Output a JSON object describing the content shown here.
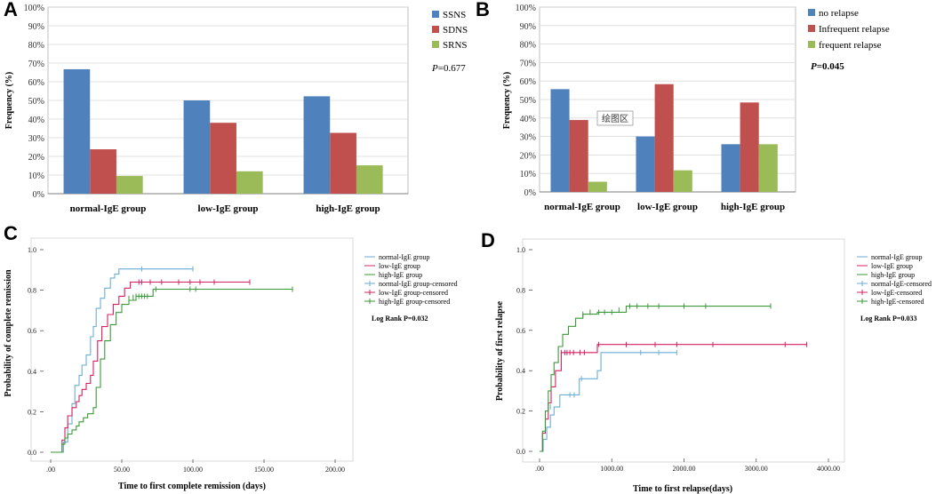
{
  "chart_data": [
    {
      "panel": "A",
      "type": "bar",
      "xlabel": "",
      "ylabel": "Frequency (%)",
      "yticks": [
        "0%",
        "10%",
        "20%",
        "30%",
        "40%",
        "50%",
        "60%",
        "70%",
        "80%",
        "90%",
        "100%"
      ],
      "ylim": [
        0,
        100
      ],
      "categories": [
        "normal-IgE group",
        "low-IgE group",
        "high-IgE group"
      ],
      "series": [
        {
          "name": "SSNS",
          "color": "#4f81bd",
          "values": [
            66.7,
            50.0,
            52.2
          ]
        },
        {
          "name": "SDNS",
          "color": "#c0504d",
          "values": [
            23.8,
            38.0,
            32.6
          ]
        },
        {
          "name": "SRNS",
          "color": "#9bbb59",
          "values": [
            9.5,
            12.0,
            15.2
          ]
        }
      ],
      "annotation_prefix": "P",
      "annotation_value": "=0.677"
    },
    {
      "panel": "B",
      "type": "bar",
      "xlabel": "",
      "ylabel": "Frequency (%)",
      "yticks": [
        "0%",
        "10%",
        "20%",
        "30%",
        "40%",
        "50%",
        "60%",
        "70%",
        "80%",
        "90%",
        "100%"
      ],
      "ylim": [
        0,
        100
      ],
      "categories": [
        "normal-IgE group",
        "low-IgE group",
        "high-IgE group"
      ],
      "series": [
        {
          "name": "no relapse",
          "color": "#4f81bd",
          "values": [
            55.6,
            30.0,
            25.8
          ]
        },
        {
          "name": "Infrequent relapse",
          "color": "#c0504d",
          "values": [
            38.9,
            58.3,
            48.4
          ]
        },
        {
          "name": "frequent relapse",
          "color": "#9bbb59",
          "values": [
            5.5,
            11.7,
            25.8
          ]
        }
      ],
      "annotation_prefix": "P",
      "annotation_value": "=0.045",
      "tooltip": "绘图区"
    },
    {
      "panel": "C",
      "type": "line",
      "xlabel": "Time to first complete remission (days)",
      "ylabel": "Probability of complete remission",
      "xlim": [
        0,
        200
      ],
      "ylim": [
        0,
        1
      ],
      "xticks": [
        0,
        50,
        100,
        150,
        200
      ],
      "xtick_labels": [
        ".00",
        "50.00",
        "100.00",
        "150.00",
        "200.00"
      ],
      "yticks": [
        0,
        0.2,
        0.4,
        0.6,
        0.8,
        1.0
      ],
      "ytick_labels": [
        "0.0",
        "0.2",
        "0.4",
        "0.6",
        "0.8",
        "1.0"
      ],
      "legend": [
        {
          "label": "normal-IgE group",
          "color": "#6baed6",
          "marker": false
        },
        {
          "label": "low-IgE group",
          "color": "#d62060",
          "marker": false
        },
        {
          "label": "high-IgE group",
          "color": "#3a9a3a",
          "marker": false
        },
        {
          "label": "normal-IgE group-censored",
          "color": "#6baed6",
          "marker": true
        },
        {
          "label": "low-IgE group-censored",
          "color": "#d62060",
          "marker": true
        },
        {
          "label": "high-IgE group-censored",
          "color": "#3a9a3a",
          "marker": true
        }
      ],
      "annotation": "Log Rank P=0.032",
      "series": [
        {
          "name": "normal-IgE group",
          "color": "#6baed6",
          "x": [
            0,
            9,
            12,
            15,
            17,
            20,
            22,
            25,
            28,
            30,
            32,
            35,
            38,
            42,
            45,
            48,
            100
          ],
          "y": [
            0,
            0.05,
            0.14,
            0.24,
            0.33,
            0.38,
            0.43,
            0.48,
            0.57,
            0.62,
            0.71,
            0.76,
            0.81,
            0.86,
            0.88,
            0.905,
            0.905
          ],
          "censored_x": [
            64,
            100
          ],
          "censored_y": [
            0.905,
            0.905
          ]
        },
        {
          "name": "low-IgE group",
          "color": "#d62060",
          "x": [
            0,
            8,
            10,
            12,
            15,
            18,
            20,
            22,
            25,
            28,
            30,
            33,
            36,
            40,
            44,
            48,
            52,
            56,
            140
          ],
          "y": [
            0,
            0.06,
            0.12,
            0.18,
            0.22,
            0.25,
            0.28,
            0.31,
            0.34,
            0.38,
            0.45,
            0.55,
            0.62,
            0.68,
            0.73,
            0.77,
            0.81,
            0.84,
            0.84
          ],
          "censored_x": [
            62,
            64,
            70,
            78,
            90,
            98,
            105,
            115,
            140
          ],
          "censored_y": [
            0.84,
            0.84,
            0.84,
            0.84,
            0.84,
            0.84,
            0.84,
            0.84,
            0.84
          ]
        },
        {
          "name": "high-IgE group",
          "color": "#3a9a3a",
          "x": [
            0,
            8,
            10,
            12,
            15,
            18,
            20,
            23,
            26,
            30,
            32,
            35,
            38,
            42,
            46,
            50,
            55,
            60,
            72,
            170
          ],
          "y": [
            0,
            0.04,
            0.07,
            0.09,
            0.11,
            0.13,
            0.15,
            0.17,
            0.19,
            0.22,
            0.32,
            0.46,
            0.55,
            0.63,
            0.69,
            0.73,
            0.75,
            0.77,
            0.805,
            0.805
          ],
          "censored_x": [
            55,
            58,
            60,
            62,
            64,
            66,
            68,
            74,
            98,
            102,
            170
          ],
          "censored_y": [
            0.76,
            0.765,
            0.77,
            0.77,
            0.77,
            0.77,
            0.77,
            0.805,
            0.805,
            0.805,
            0.805
          ]
        }
      ]
    },
    {
      "panel": "D",
      "type": "line",
      "xlabel": "Time to first relapse(days)",
      "ylabel": "Probability of first relapse",
      "xlim": [
        0,
        4000
      ],
      "ylim": [
        0,
        1
      ],
      "xticks": [
        0,
        1000,
        2000,
        3000,
        4000
      ],
      "xtick_labels": [
        ".00",
        "1000.00",
        "2000.00",
        "3000.00",
        "4000.00"
      ],
      "yticks": [
        0,
        0.2,
        0.4,
        0.6,
        0.8,
        1.0
      ],
      "ytick_labels": [
        "0.0",
        "0.2",
        "0.4",
        "0.6",
        "0.8",
        "1.0"
      ],
      "legend": [
        {
          "label": "normal-IgE group",
          "color": "#6baed6",
          "marker": false
        },
        {
          "label": "low-IgE group",
          "color": "#d62060",
          "marker": false
        },
        {
          "label": "high-IgE group",
          "color": "#3a9a3a",
          "marker": false
        },
        {
          "label": "normal-IgE-censored",
          "color": "#6baed6",
          "marker": true
        },
        {
          "label": "low-IgE-censored",
          "color": "#d62060",
          "marker": true
        },
        {
          "label": "high-IgE-censored",
          "color": "#3a9a3a",
          "marker": true
        }
      ],
      "annotation": "Log Rank P=0.033",
      "series": [
        {
          "name": "normal-IgE group",
          "color": "#6baed6",
          "x": [
            0,
            50,
            100,
            150,
            200,
            280,
            550,
            800,
            850,
            1900
          ],
          "y": [
            0,
            0.06,
            0.12,
            0.18,
            0.22,
            0.28,
            0.36,
            0.4,
            0.49,
            0.49
          ],
          "censored_x": [
            150,
            420,
            480,
            580,
            1400,
            1650,
            1900
          ],
          "censored_y": [
            0.22,
            0.28,
            0.28,
            0.36,
            0.49,
            0.49,
            0.49
          ]
        },
        {
          "name": "low-IgE group",
          "color": "#d62060",
          "x": [
            0,
            40,
            80,
            120,
            160,
            220,
            300,
            800,
            3700
          ],
          "y": [
            0,
            0.09,
            0.16,
            0.24,
            0.32,
            0.4,
            0.49,
            0.53,
            0.53
          ],
          "censored_x": [
            300,
            350,
            380,
            420,
            470,
            560,
            620,
            820,
            1200,
            1600,
            1900,
            2400,
            3400,
            3700
          ],
          "censored_y": [
            0.49,
            0.49,
            0.49,
            0.49,
            0.49,
            0.49,
            0.49,
            0.53,
            0.53,
            0.53,
            0.53,
            0.53,
            0.53,
            0.53
          ]
        },
        {
          "name": "high-IgE group",
          "color": "#3a9a3a",
          "x": [
            0,
            40,
            80,
            120,
            160,
            200,
            260,
            320,
            400,
            500,
            600,
            800,
            1200,
            3200
          ],
          "y": [
            0,
            0.1,
            0.2,
            0.3,
            0.38,
            0.44,
            0.52,
            0.58,
            0.62,
            0.66,
            0.68,
            0.69,
            0.72,
            0.72
          ],
          "censored_x": [
            600,
            700,
            820,
            900,
            1000,
            1100,
            1250,
            1350,
            1500,
            1650,
            2000,
            2300,
            3200
          ],
          "censored_y": [
            0.68,
            0.69,
            0.69,
            0.69,
            0.69,
            0.7,
            0.72,
            0.72,
            0.72,
            0.72,
            0.72,
            0.72,
            0.72
          ]
        }
      ]
    }
  ],
  "panel_labels": [
    "A",
    "B",
    "C",
    "D"
  ]
}
